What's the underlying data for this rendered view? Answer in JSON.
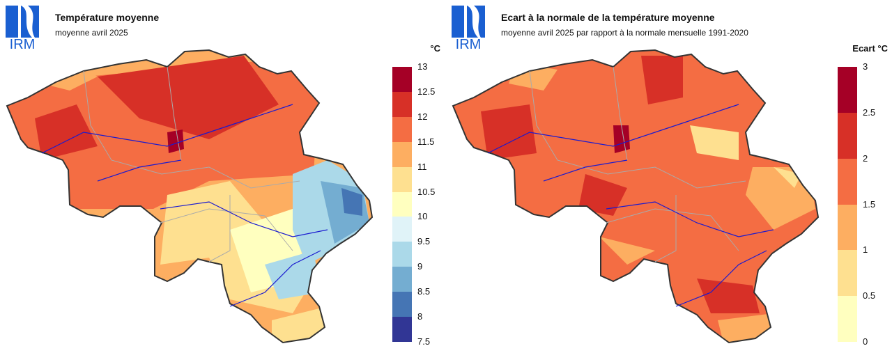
{
  "logo": {
    "text": "IRM",
    "color": "#1a5fd1"
  },
  "left_panel": {
    "title": "Température moyenne",
    "subtitle": "moyenne avril 2025",
    "unit": "°C",
    "legend": {
      "labels": [
        "13",
        "12.5",
        "12",
        "11.5",
        "11",
        "10.5",
        "10",
        "9.5",
        "9",
        "8.5",
        "8",
        "7.5"
      ],
      "colors": [
        "#a50026",
        "#d73027",
        "#f46d43",
        "#fdae61",
        "#fee090",
        "#ffffbf",
        "#e0f3f8",
        "#abd9e9",
        "#74add1",
        "#4575b4",
        "#313695"
      ]
    }
  },
  "right_panel": {
    "title": "Ecart à la normale de la température moyenne",
    "subtitle": "moyenne avril 2025 par rapport à la normale mensuelle 1991-2020",
    "unit": "Ecart °C",
    "legend": {
      "labels": [
        "3",
        "2.5",
        "2",
        "1.5",
        "1",
        "0.5",
        "0"
      ],
      "colors": [
        "#a50026",
        "#d73027",
        "#f46d43",
        "#fdae61",
        "#fee090",
        "#ffffbf"
      ]
    }
  }
}
